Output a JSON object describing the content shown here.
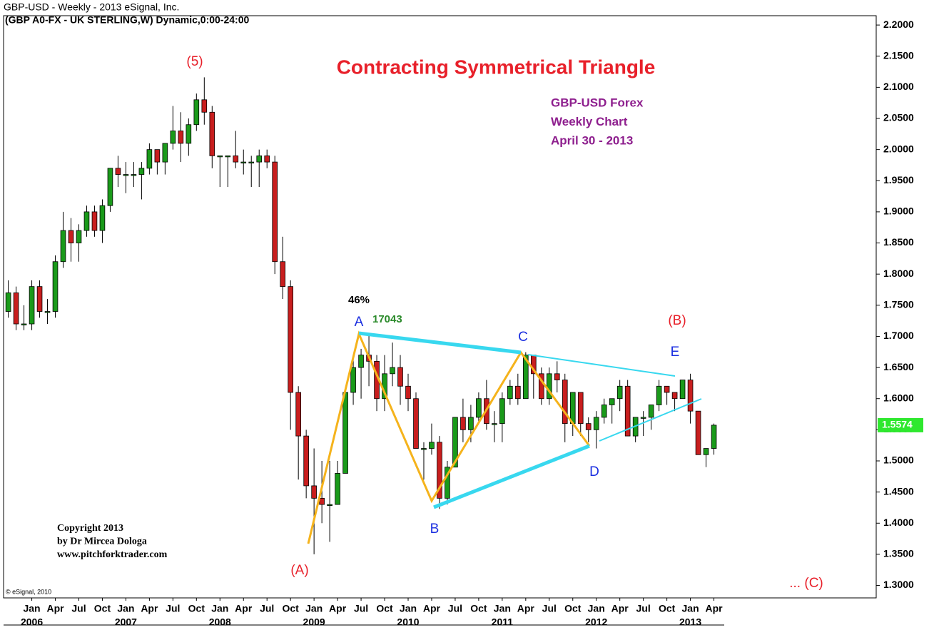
{
  "chart_data": {
    "type": "candlestick",
    "header": "GBP-USD -  Weekly - 2013 eSignal, Inc.",
    "subheader": "(GBP A0-FX - UK STERLING,W) Dynamic,0:00-24:00",
    "title": "Contracting Symmetrical Triangle",
    "info": [
      "GBP-USD Forex",
      "Weekly Chart",
      "April 30 - 2013"
    ],
    "wave_labels": [
      "(5)",
      "(A)",
      "(B)",
      "... (C)",
      "A",
      "B",
      "C",
      "D",
      "E"
    ],
    "notes": [
      "46%",
      "17043"
    ],
    "copyright": [
      "Copyright 2013",
      "by Dr Mircea Dologa",
      "www.pitchforktrader.com"
    ],
    "source": "© eSignal, 2010",
    "up_color": "#1a9a1a",
    "down_color": "#c81e1e",
    "x": [
      -3,
      -2,
      -1,
      0,
      1,
      2,
      3,
      4,
      5,
      6,
      7,
      8,
      9,
      10,
      11,
      12,
      13,
      14,
      15,
      16,
      17,
      18,
      19,
      20,
      21,
      22,
      23,
      24,
      25,
      26,
      27,
      28,
      29,
      30,
      31,
      32,
      33,
      34,
      35,
      36,
      37,
      38,
      39,
      40,
      41,
      42,
      43,
      44,
      45,
      46,
      47,
      48,
      49,
      50,
      51,
      52,
      53,
      54,
      55,
      56,
      57,
      58,
      59,
      60,
      61,
      62,
      63,
      64,
      65,
      66,
      67,
      68,
      69,
      70,
      71,
      72,
      73,
      74,
      75,
      76,
      77,
      78,
      79,
      80,
      81,
      82,
      83,
      84,
      85,
      86,
      87
    ],
    "open": [
      1.74,
      1.77,
      1.72,
      1.72,
      1.78,
      1.74,
      1.74,
      1.82,
      1.87,
      1.85,
      1.87,
      1.9,
      1.87,
      1.91,
      1.97,
      1.96,
      1.96,
      1.96,
      1.97,
      2.0,
      1.98,
      2.01,
      2.03,
      2.01,
      2.04,
      2.08,
      2.06,
      1.99,
      1.99,
      1.99,
      1.98,
      1.98,
      1.98,
      1.99,
      1.98,
      1.82,
      1.78,
      1.61,
      1.54,
      1.46,
      1.44,
      1.43,
      1.43,
      1.48,
      1.61,
      1.65,
      1.67,
      1.66,
      1.6,
      1.64,
      1.65,
      1.62,
      1.6,
      1.52,
      1.52,
      1.53,
      1.44,
      1.49,
      1.57,
      1.55,
      1.57,
      1.6,
      1.56,
      1.56,
      1.6,
      1.62,
      1.6,
      1.67,
      1.64,
      1.6,
      1.64,
      1.63,
      1.56,
      1.61,
      1.56,
      1.55,
      1.57,
      1.59,
      1.6,
      1.62,
      1.54,
      1.57,
      1.57,
      1.59,
      1.62,
      1.61,
      1.6,
      1.63,
      1.58,
      1.51,
      1.52
    ],
    "high": [
      1.79,
      1.78,
      1.75,
      1.79,
      1.79,
      1.76,
      1.83,
      1.9,
      1.89,
      1.88,
      1.91,
      1.91,
      1.92,
      1.97,
      1.99,
      1.98,
      1.98,
      1.98,
      2.01,
      2.0,
      2.01,
      2.07,
      2.06,
      2.05,
      2.09,
      2.116,
      2.07,
      1.99,
      1.99,
      2.03,
      2.0,
      1.99,
      2.0,
      2.0,
      1.99,
      1.86,
      1.79,
      1.62,
      1.55,
      1.52,
      1.5,
      1.5,
      1.5,
      1.61,
      1.67,
      1.68,
      1.7043,
      1.67,
      1.67,
      1.69,
      1.67,
      1.64,
      1.61,
      1.53,
      1.56,
      1.54,
      1.5,
      1.57,
      1.6,
      1.59,
      1.61,
      1.63,
      1.58,
      1.61,
      1.63,
      1.64,
      1.6746,
      1.67,
      1.65,
      1.65,
      1.66,
      1.64,
      1.61,
      1.61,
      1.57,
      1.58,
      1.6,
      1.6,
      1.63,
      1.63,
      1.57,
      1.58,
      1.59,
      1.63,
      1.62,
      1.61,
      1.63,
      1.64,
      1.58,
      1.52,
      1.56
    ],
    "low": [
      1.73,
      1.71,
      1.71,
      1.71,
      1.73,
      1.72,
      1.73,
      1.81,
      1.82,
      1.82,
      1.86,
      1.86,
      1.85,
      1.9,
      1.94,
      1.93,
      1.94,
      1.92,
      1.96,
      1.96,
      1.96,
      2.0,
      1.98,
      1.99,
      2.03,
      2.04,
      1.97,
      1.94,
      1.94,
      1.97,
      1.96,
      1.94,
      1.94,
      1.97,
      1.8,
      1.76,
      1.55,
      1.47,
      1.44,
      1.35,
      1.4,
      1.37,
      1.43,
      1.48,
      1.59,
      1.6,
      1.62,
      1.58,
      1.58,
      1.62,
      1.59,
      1.58,
      1.52,
      1.47,
      1.51,
      1.4229,
      1.43,
      1.49,
      1.53,
      1.53,
      1.56,
      1.55,
      1.53,
      1.53,
      1.59,
      1.59,
      1.6,
      1.6,
      1.59,
      1.59,
      1.61,
      1.53,
      1.54,
      1.54,
      1.53,
      1.52,
      1.56,
      1.56,
      1.58,
      1.54,
      1.53,
      1.54,
      1.55,
      1.58,
      1.59,
      1.58,
      1.6,
      1.56,
      1.51,
      1.49,
      1.51
    ],
    "close": [
      1.77,
      1.72,
      1.72,
      1.78,
      1.74,
      1.74,
      1.82,
      1.87,
      1.85,
      1.87,
      1.9,
      1.87,
      1.91,
      1.97,
      1.96,
      1.96,
      1.96,
      1.97,
      2.0,
      1.98,
      2.01,
      2.03,
      2.01,
      2.04,
      2.08,
      2.06,
      1.99,
      1.99,
      1.99,
      1.98,
      1.98,
      1.98,
      1.99,
      1.98,
      1.82,
      1.78,
      1.61,
      1.54,
      1.46,
      1.44,
      1.43,
      1.43,
      1.48,
      1.61,
      1.65,
      1.67,
      1.66,
      1.6,
      1.64,
      1.65,
      1.62,
      1.6,
      1.52,
      1.52,
      1.53,
      1.44,
      1.49,
      1.57,
      1.55,
      1.57,
      1.6,
      1.56,
      1.56,
      1.6,
      1.62,
      1.6,
      1.67,
      1.64,
      1.6,
      1.64,
      1.63,
      1.56,
      1.61,
      1.56,
      1.55,
      1.57,
      1.59,
      1.6,
      1.62,
      1.54,
      1.57,
      1.57,
      1.59,
      1.62,
      1.61,
      1.6,
      1.63,
      1.58,
      1.51,
      1.52,
      1.5574
    ],
    "xlim": [
      -3.6,
      107.7
    ],
    "ylim": [
      1.28,
      2.215
    ],
    "xticks": [
      {
        "value": 0,
        "label": "Jan"
      },
      {
        "value": 3,
        "label": "Apr"
      },
      {
        "value": 6,
        "label": "Jul"
      },
      {
        "value": 9,
        "label": "Oct"
      },
      {
        "value": 12,
        "label": "Jan"
      },
      {
        "value": 15,
        "label": "Apr"
      },
      {
        "value": 18,
        "label": "Jul"
      },
      {
        "value": 21,
        "label": "Oct"
      },
      {
        "value": 24,
        "label": "Jan"
      },
      {
        "value": 27,
        "label": "Apr"
      },
      {
        "value": 30,
        "label": "Jul"
      },
      {
        "value": 33,
        "label": "Oct"
      },
      {
        "value": 36,
        "label": "Jan"
      },
      {
        "value": 39,
        "label": "Apr"
      },
      {
        "value": 42,
        "label": "Jul"
      },
      {
        "value": 45,
        "label": "Oct"
      },
      {
        "value": 48,
        "label": "Jan"
      },
      {
        "value": 51,
        "label": "Apr"
      },
      {
        "value": 54,
        "label": "Jul"
      },
      {
        "value": 57,
        "label": "Oct"
      },
      {
        "value": 60,
        "label": "Jan"
      },
      {
        "value": 63,
        "label": "Apr"
      },
      {
        "value": 66,
        "label": "Jul"
      },
      {
        "value": 69,
        "label": "Oct"
      },
      {
        "value": 72,
        "label": "Jan"
      },
      {
        "value": 75,
        "label": "Apr"
      },
      {
        "value": 78,
        "label": "Jul"
      },
      {
        "value": 81,
        "label": "Oct"
      },
      {
        "value": 84,
        "label": "Jan"
      },
      {
        "value": 87,
        "label": "Apr"
      }
    ],
    "xyears": [
      {
        "value": 0,
        "label": "2006"
      },
      {
        "value": 12,
        "label": "2007"
      },
      {
        "value": 24,
        "label": "2008"
      },
      {
        "value": 36,
        "label": "2009"
      },
      {
        "value": 48,
        "label": "2010"
      },
      {
        "value": 60,
        "label": "2011"
      },
      {
        "value": 72,
        "label": "2012"
      },
      {
        "value": 84,
        "label": "2013"
      }
    ],
    "yticks": [
      {
        "value": 2.2,
        "label": "2.2000"
      },
      {
        "value": 2.15,
        "label": "2.1500"
      },
      {
        "value": 2.1,
        "label": "2.1000"
      },
      {
        "value": 2.05,
        "label": "2.0500"
      },
      {
        "value": 2.0,
        "label": "2.0000"
      },
      {
        "value": 1.95,
        "label": "1.9500"
      },
      {
        "value": 1.9,
        "label": "1.9000"
      },
      {
        "value": 1.85,
        "label": "1.8500"
      },
      {
        "value": 1.8,
        "label": "1.8000"
      },
      {
        "value": 1.75,
        "label": "1.7500"
      },
      {
        "value": 1.7,
        "label": "1.7000"
      },
      {
        "value": 1.65,
        "label": "1.6500"
      },
      {
        "value": 1.6,
        "label": "1.6000"
      },
      {
        "value": 1.55,
        "label": "1.5500"
      },
      {
        "value": 1.5,
        "label": "1.5000"
      },
      {
        "value": 1.45,
        "label": "1.4500"
      },
      {
        "value": 1.4,
        "label": "1.4000"
      },
      {
        "value": 1.35,
        "label": "1.3500"
      },
      {
        "value": 1.3,
        "label": "1.3000"
      }
    ]
  }
}
